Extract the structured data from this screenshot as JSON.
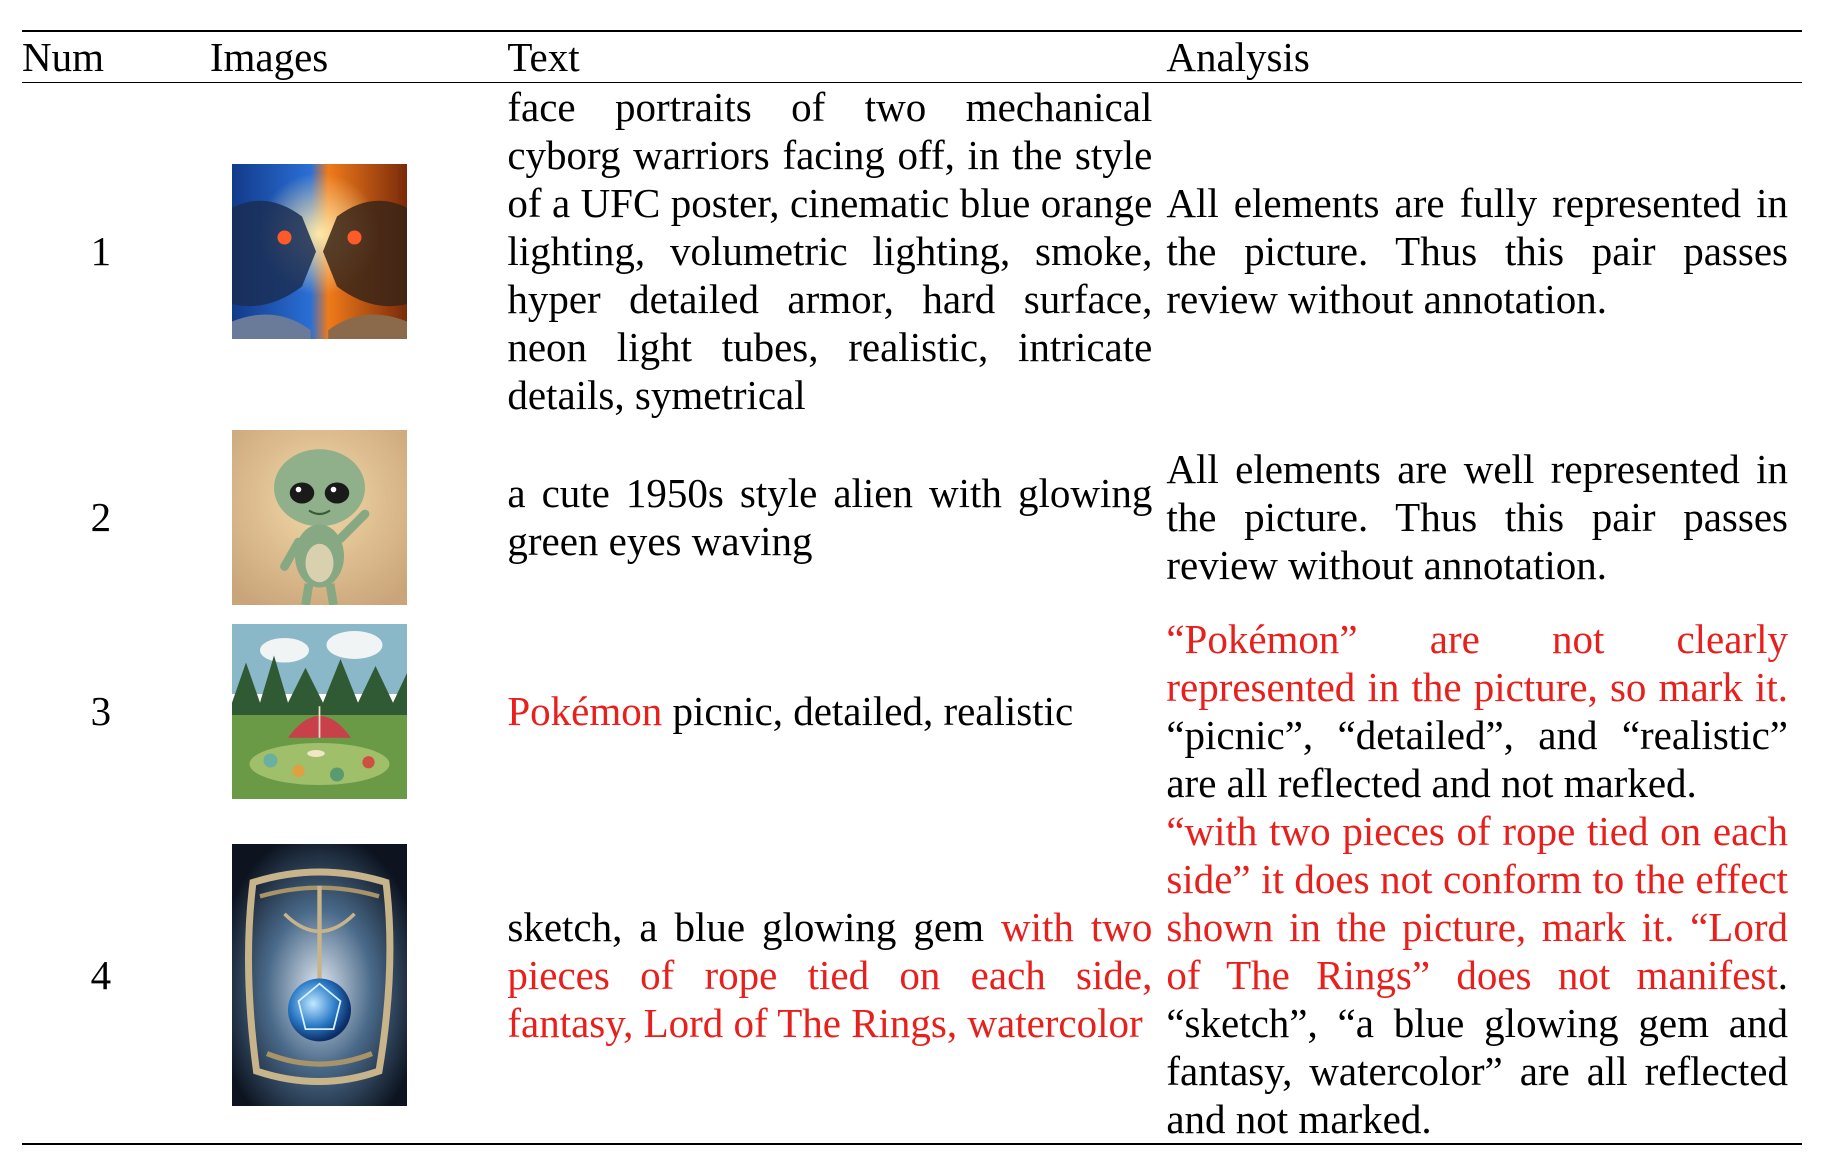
{
  "headers": {
    "num": "Num",
    "images": "Images",
    "text": "Text",
    "analysis": "Analysis"
  },
  "colors": {
    "highlight": "#e8201d",
    "text": "#000000"
  },
  "rows": [
    {
      "num": "1",
      "image_icon": "cyborg-warriors-image",
      "text": [
        {
          "t": "face portraits of two mechanical cyborg warriors facing off, in the style of a UFC poster, cinematic blue orange lighting, volumetric lighting, smoke, hyper detailed armor, hard surface, neon light tubes, realistic, intricate details, symetrical",
          "red": false
        }
      ],
      "analysis": [
        {
          "t": "All elements are fully represented in the picture. Thus this pair passes review without annotation.",
          "red": false
        }
      ]
    },
    {
      "num": "2",
      "image_icon": "alien-image",
      "text": [
        {
          "t": "a cute 1950s style alien with glowing green eyes waving",
          "red": false
        }
      ],
      "analysis": [
        {
          "t": "All elements are well represented in the picture.  Thus this pair passes review without annotation.",
          "red": false
        }
      ]
    },
    {
      "num": "3",
      "image_icon": "picnic-image",
      "text": [
        {
          "t": "Pokémon",
          "red": true
        },
        {
          "t": " picnic, detailed, realistic",
          "red": false
        }
      ],
      "analysis": [
        {
          "t": "“Pokémon” are not clearly represented in the picture, so mark it.",
          "red": true
        },
        {
          "t": " “picnic”, “detailed”, and “realistic” are all reflected and not marked.",
          "red": false
        }
      ]
    },
    {
      "num": "4",
      "image_icon": "gem-image",
      "text": [
        {
          "t": "sketch, a blue glowing gem ",
          "red": false
        },
        {
          "t": "with two pieces of rope tied on each side, fantasy, Lord of The Rings, watercolor",
          "red": true
        }
      ],
      "analysis": [
        {
          "t": "“with two pieces of rope tied on each side” it does not conform to the effect shown in the picture, mark it. “Lord of The Rings” does not manifest",
          "red": true
        },
        {
          "t": ". “sketch”, “a blue glowing gem and fantasy, watercolor” are all reflected and not marked.",
          "red": false
        }
      ]
    }
  ]
}
